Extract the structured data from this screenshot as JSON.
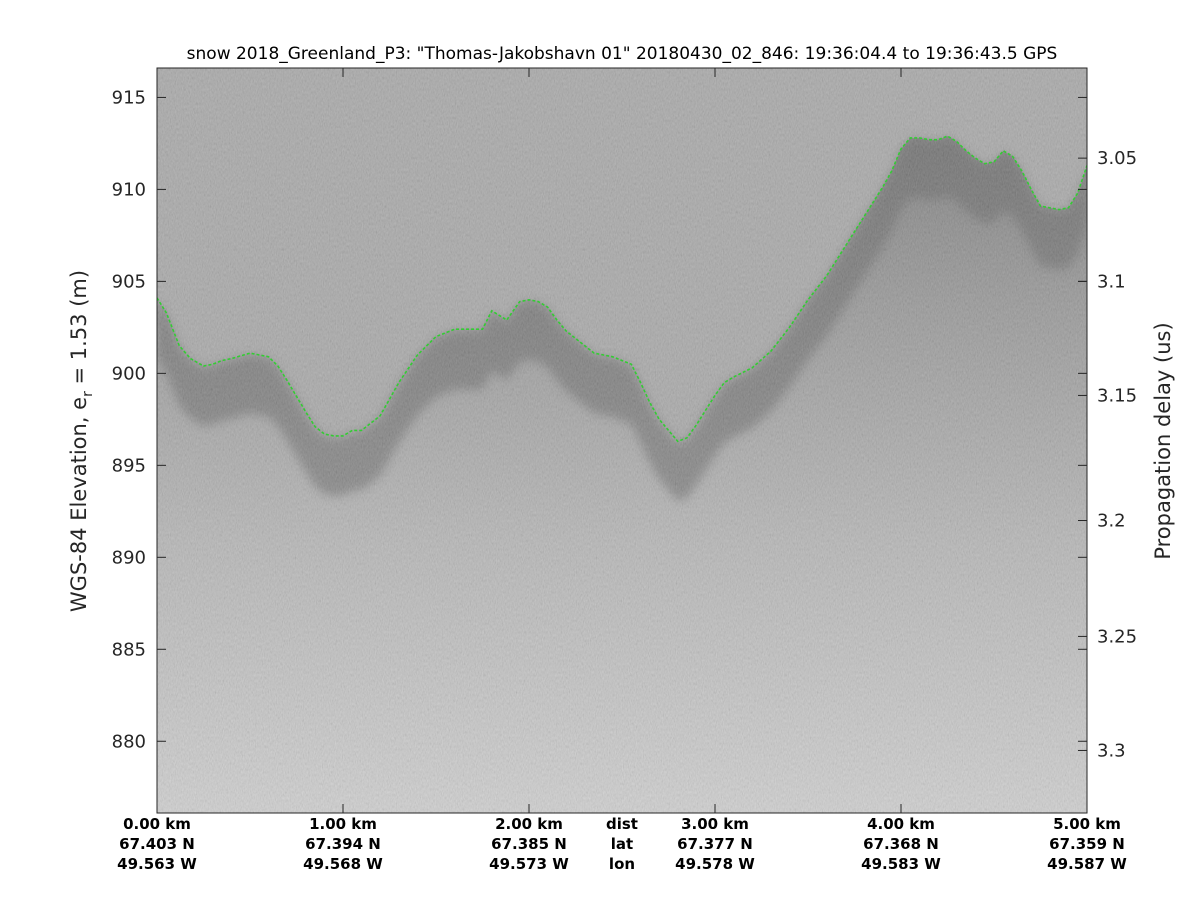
{
  "chart_data": {
    "type": "radar-echogram",
    "title": "snow 2018_Greenland_P3: \"Thomas-Jakobshavn 01\"  20180430_02_846: 19:36:04.4 to 19:36:43.5 GPS",
    "ylabel_left": "WGS-84 Elevation, e",
    "ylabel_left_sub": "r",
    "ylabel_left_tail": " = 1.53 (m)",
    "ylabel_right": "Propagation delay (us)",
    "ylim": [
      876.1,
      916.6
    ],
    "yticks_left": [
      880,
      885,
      890,
      895,
      900,
      905,
      910,
      915
    ],
    "yticks_right": [
      {
        "label": "3.05",
        "elev": 911.7
      },
      {
        "label": "3.1",
        "elev": 905.0
      },
      {
        "label": "3.15",
        "elev": 898.8
      },
      {
        "label": "3.2",
        "elev": 892.0
      },
      {
        "label": "3.25",
        "elev": 885.7
      },
      {
        "label": "3.3",
        "elev": 879.5
      }
    ],
    "xlim": [
      0,
      5
    ],
    "x_columns": [
      {
        "dist": "0.00 km",
        "lat": "67.403 N",
        "lon": "49.563 W",
        "x": 0
      },
      {
        "dist": "1.00 km",
        "lat": "67.394 N",
        "lon": "49.568 W",
        "x": 1
      },
      {
        "dist": "2.00 km",
        "lat": "67.385 N",
        "lon": "49.573 W",
        "x": 2
      },
      {
        "dist": "3.00 km",
        "lat": "67.377 N",
        "lon": "49.578 W",
        "x": 3
      },
      {
        "dist": "4.00 km",
        "lat": "67.368 N",
        "lon": "49.583 W",
        "x": 4
      },
      {
        "dist": "5.00 km",
        "lat": "67.359 N",
        "lon": "49.587 W",
        "x": 5
      }
    ],
    "row_labels": {
      "x": 2.5,
      "dist": "dist",
      "lat": "lat",
      "lon": "lon"
    },
    "surface_line_color": "#33cc33",
    "surface": {
      "x": [
        0,
        0.05,
        0.12,
        0.18,
        0.25,
        0.3,
        0.35,
        0.4,
        0.5,
        0.6,
        0.65,
        0.7,
        0.8,
        0.85,
        0.9,
        0.95,
        1.0,
        1.05,
        1.1,
        1.2,
        1.3,
        1.4,
        1.5,
        1.6,
        1.65,
        1.75,
        1.8,
        1.88,
        1.95,
        2.0,
        2.05,
        2.1,
        2.15,
        2.2,
        2.25,
        2.3,
        2.35,
        2.45,
        2.55,
        2.6,
        2.65,
        2.7,
        2.8,
        2.85,
        2.9,
        2.95,
        3.0,
        3.05,
        3.1,
        3.2,
        3.3,
        3.4,
        3.5,
        3.6,
        3.7,
        3.8,
        3.9,
        3.95,
        4.0,
        4.05,
        4.1,
        4.15,
        4.2,
        4.25,
        4.3,
        4.35,
        4.4,
        4.45,
        4.5,
        4.55,
        4.6,
        4.65,
        4.7,
        4.75,
        4.8,
        4.85,
        4.9,
        4.95,
        5.0
      ],
      "y": [
        904.1,
        903.3,
        901.5,
        900.8,
        900.4,
        900.5,
        900.7,
        900.8,
        901.1,
        900.9,
        900.4,
        899.6,
        897.9,
        897.1,
        896.7,
        896.6,
        896.6,
        896.9,
        896.9,
        897.7,
        899.5,
        901.0,
        902.0,
        902.4,
        902.4,
        902.4,
        903.4,
        902.9,
        903.9,
        904.0,
        903.9,
        903.6,
        902.9,
        902.3,
        901.9,
        901.5,
        901.1,
        900.9,
        900.5,
        899.5,
        898.4,
        897.5,
        896.3,
        896.5,
        897.2,
        898.0,
        898.8,
        899.5,
        899.8,
        900.3,
        901.2,
        902.5,
        904.0,
        905.3,
        906.9,
        908.5,
        910.1,
        911.0,
        912.2,
        912.8,
        912.8,
        912.7,
        912.7,
        912.9,
        912.6,
        912.1,
        911.7,
        911.4,
        911.5,
        912.1,
        911.8,
        911.0,
        910.0,
        909.1,
        909.0,
        908.9,
        909.0,
        909.8,
        911.3
      ]
    }
  }
}
